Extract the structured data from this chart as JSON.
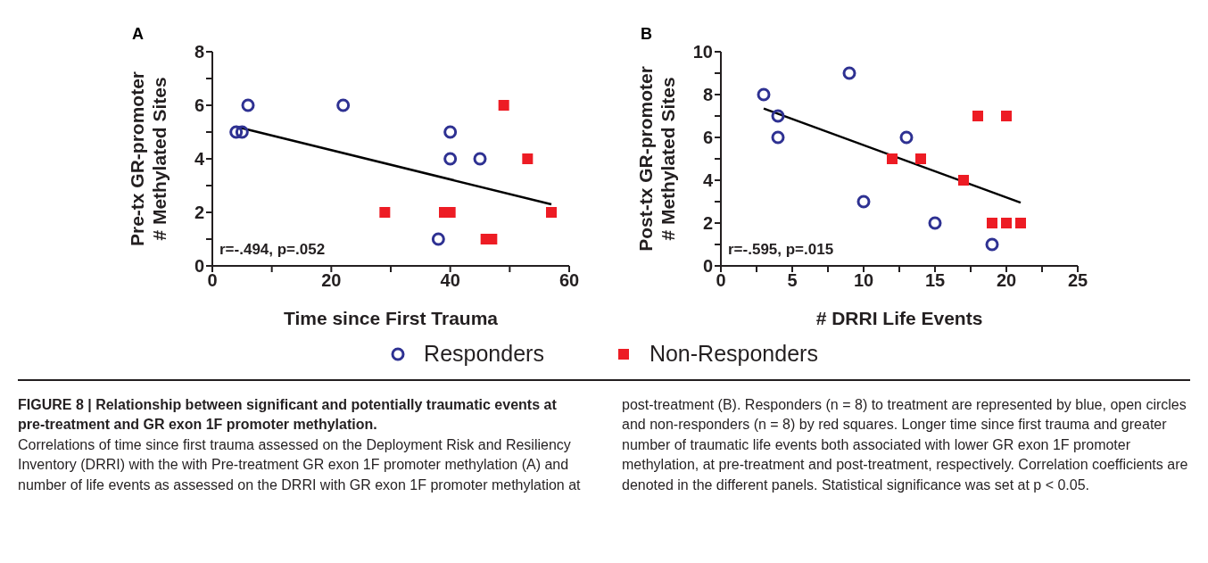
{
  "chart_data": [
    {
      "type": "scatter",
      "title": "A",
      "xlabel": "Time since First Trauma",
      "ylabel": "Pre-tx GR-promoter\n# Methylated Sites",
      "xlim": [
        0,
        60
      ],
      "xticks": [
        0,
        {
          "value": 10,
          "label": null
        },
        20,
        {
          "value": 30,
          "label": null
        },
        40,
        {
          "value": 50,
          "label": null
        },
        60
      ],
      "ylim": [
        0,
        8
      ],
      "yticks": [
        0,
        {
          "value": 1,
          "label": null
        },
        2,
        {
          "value": 3,
          "label": null
        },
        4,
        {
          "value": 5,
          "label": null
        },
        6,
        {
          "value": 7,
          "label": null
        },
        8
      ],
      "legend": "bottom",
      "annotations": [
        "r=-.494, p=.052",
        "FIGURE 8 | Relationship between significant and potentially traumatic events at pre-treatment and GR exon 1F promoter methylation.",
        "Correlations of time since first trauma assessed on the Deployment Risk and Resiliency Inventory (DRRI) with the with Pre-treatment GR exon 1F promoter methylation (A) and number of life events as assessed on the DRRI with GR exon 1F promoter methylation at post-treatment (B). Responders (n = 8) to treatment are represented by blue, open circles and non-responders (n = 8) by red squares. Longer time since first trauma and greater number of traumatic life events both associated with lower GR exon 1F promoter methylation, at pre-treatment and post-treatment, respectively. Correlation coefficients are denoted in the different panels. Statistical significance was set at p < 0.05."
      ],
      "series": [
        {
          "name": "Responders",
          "marker": "circle",
          "color": "#2e3192",
          "x": [
            4,
            5,
            6,
            22,
            40,
            40,
            45,
            38
          ],
          "values": [
            5,
            5,
            6,
            6,
            5,
            4,
            4,
            1
          ]
        },
        {
          "name": "Non-Responders",
          "marker": "square",
          "color": "#ed1c24",
          "x": [
            29,
            39,
            40,
            49,
            53,
            57,
            46,
            47
          ],
          "values": [
            2,
            2,
            2,
            6,
            4,
            2,
            1,
            1
          ]
        },
        {
          "type": "line",
          "marker": "none",
          "line_style": "solid",
          "color": "#000000",
          "x": [
            4,
            57
          ],
          "values": [
            5.2,
            2.3
          ]
        }
      ]
    },
    {
      "type": "scatter",
      "title": "B",
      "xlabel": "# DRRI Life Events",
      "ylabel": "Post-tx GR-promoter\n# Methylated Sites",
      "xlim": [
        0,
        25
      ],
      "xticks": [
        0,
        {
          "value": 2.5,
          "label": null
        },
        5,
        {
          "value": 7.5,
          "label": null
        },
        10,
        {
          "value": 12.5,
          "label": null
        },
        15,
        {
          "value": 17.5,
          "label": null
        },
        20,
        {
          "value": 22.5,
          "label": null
        },
        25
      ],
      "ylim": [
        0,
        10
      ],
      "yticks": [
        0,
        {
          "value": 1,
          "label": null
        },
        2,
        {
          "value": 3,
          "label": null
        },
        4,
        {
          "value": 5,
          "label": null
        },
        6,
        {
          "value": 7,
          "label": null
        },
        8,
        {
          "value": 9,
          "label": null
        },
        10
      ],
      "annotations": [
        "r=-.595, p=.015"
      ],
      "series": [
        {
          "marker": "circle",
          "color": "#2e3192",
          "x": [
            3,
            4,
            4,
            9,
            13,
            10,
            15,
            19
          ],
          "values": [
            8,
            7,
            6,
            9,
            6,
            3,
            2,
            1
          ]
        },
        {
          "marker": "square",
          "color": "#ed1c24",
          "x": [
            12,
            14,
            17,
            18,
            20,
            19,
            20,
            21
          ],
          "values": [
            5,
            5,
            4,
            7,
            7,
            2,
            2,
            2
          ]
        },
        {
          "type": "line",
          "marker": "none",
          "line_style": "solid",
          "color": "#000000",
          "x": [
            3,
            21
          ],
          "values": [
            7.35,
            2.95
          ]
        }
      ]
    }
  ]
}
